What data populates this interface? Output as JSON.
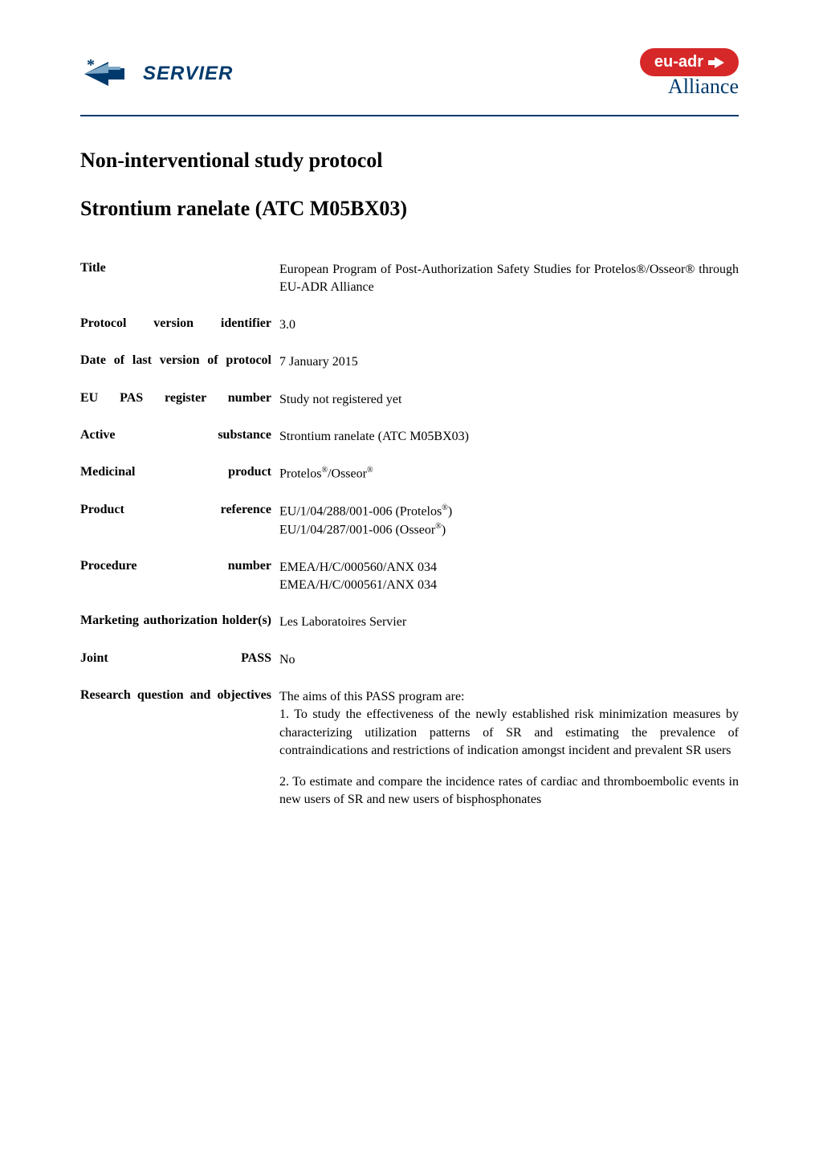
{
  "header": {
    "logo_left_text": "SERVIER",
    "eu_adr_text": "eu-adr",
    "alliance_text": "Alliance"
  },
  "titles": {
    "main": "Non-interventional study protocol",
    "sub": "Strontium ranelate (ATC M05BX03)"
  },
  "rows": [
    {
      "label": "Title",
      "value": "European Program of Post-Authorization Safety Studies for Protelos®/Osseor® through EU-ADR Alliance"
    },
    {
      "label": "Protocol version identifier",
      "value": "3.0"
    },
    {
      "label": "Date of last version of protocol",
      "value": "7 January 2015"
    },
    {
      "label": "EU PAS register number",
      "value": "Study not registered yet"
    },
    {
      "label": "Active substance",
      "value": "Strontium ranelate (ATC M05BX03)"
    },
    {
      "label": "Medicinal product",
      "value_html": "Protelos<sup>®</sup>/Osseor<sup>®</sup>"
    },
    {
      "label": "Product reference",
      "value_html": "EU/1/04/288/001-006 (Protelos<sup>®</sup>)<br>EU/1/04/287/001-006 (Osseor<sup>®</sup>)"
    },
    {
      "label": "Procedure number",
      "value_html": "EMEA/H/C/000560/ANX 034<br>EMEA/H/C/000561/ANX 034"
    },
    {
      "label": "Marketing authorization holder(s)",
      "value": "Les Laboratoires Servier"
    },
    {
      "label": "Joint PASS",
      "value": "No"
    },
    {
      "label": "Research question and objectives",
      "value_html": "<p>The aims of this PASS program are:<br>1. To study the effectiveness of the newly established risk minimization measures by characterizing utilization patterns of SR and estimating the prevalence of contraindications and restrictions of indication amongst incident and prevalent SR users</p><p>2. To estimate and compare the incidence rates of cardiac and thromboembolic events in new users of SR and new users of bisphosphonates</p>"
    }
  ]
}
